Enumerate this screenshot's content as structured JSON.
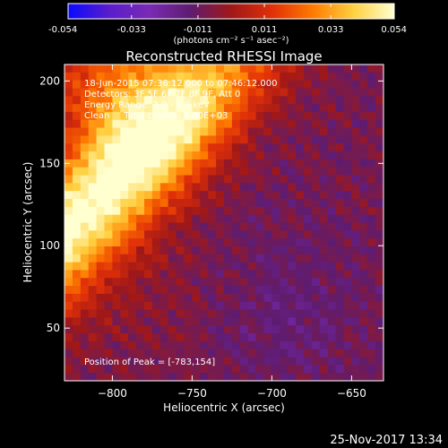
{
  "chart_data": {
    "type": "heatmap",
    "title": "Reconstructed RHESSI Image",
    "xlabel": "Heliocentric X (arcsec)",
    "ylabel": "Heliocentric Y (arcsec)",
    "xlim": [
      -830,
      -630
    ],
    "ylim": [
      18,
      210
    ],
    "x_ticks": [
      -800,
      -750,
      -700,
      -650
    ],
    "y_ticks": [
      50,
      100,
      150,
      200
    ],
    "grid": false,
    "colorbar": {
      "ticks": [
        "-0.054",
        "-0.033",
        "-0.011",
        "0.011",
        "0.033",
        "0.054"
      ],
      "units": "(photons cm⁻² s⁻¹ asec⁻²)",
      "range": [
        -0.054,
        0.054
      ]
    },
    "info_lines": [
      "18-Jun-2015 07:36:12.000 to 07:46:12.000",
      "Detectors: 3F 5F 6F 7F 8F 9F, Att 0",
      "Energy Range: 3.0 - 6.0 keV",
      "Clean     Total counts: 6.60E+03"
    ],
    "peak_label": "Position of Peak = [-783,154]",
    "peak_position": [
      -783,
      154
    ],
    "colors": {
      "ramp": [
        "#0a0aff",
        "#5a1ccc",
        "#7a2ab4",
        "#5e1c70",
        "#a01818",
        "#e03008",
        "#ff7a00",
        "#ffd040",
        "#ffffd0"
      ]
    }
  },
  "footer": {
    "date": "25-Nov-2017 13:34"
  }
}
